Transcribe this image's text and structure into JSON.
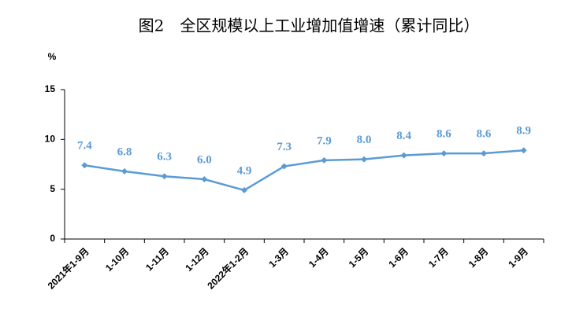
{
  "chart_data": {
    "type": "line",
    "title": "图2　全区规模以上工业增加值增速（累计同比）",
    "y_label": "%",
    "categories": [
      "2021年1-9月",
      "1-10月",
      "1-11月",
      "1-12月",
      "2022年1-2月",
      "1-3月",
      "1-4月",
      "1-5月",
      "1-6月",
      "1-7月",
      "1-8月",
      "1-9月"
    ],
    "series": [
      {
        "name": "增速",
        "color": "#5b9bd5",
        "values": [
          7.4,
          6.8,
          6.3,
          6.0,
          4.9,
          7.3,
          7.9,
          8.0,
          8.4,
          8.6,
          8.6,
          8.9
        ],
        "value_labels": [
          "7.4",
          "6.8",
          "6.3",
          "6.0",
          "4.9",
          "7.3",
          "7.9",
          "8.0",
          "8.4",
          "8.6",
          "8.6",
          "8.9"
        ]
      }
    ],
    "ylim": [
      0,
      15
    ],
    "yticks": [
      0,
      5,
      10,
      15
    ],
    "grid": false
  }
}
